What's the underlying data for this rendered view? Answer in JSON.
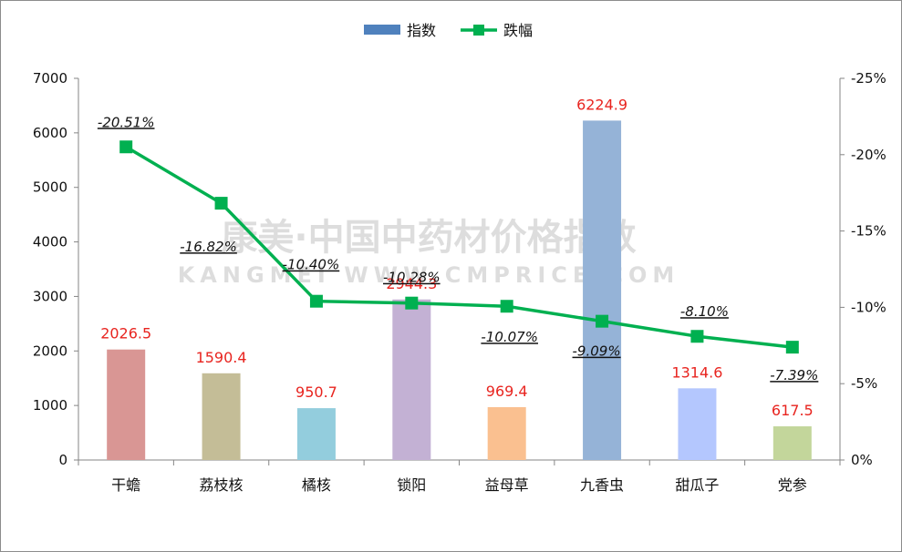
{
  "chart_data": {
    "type": "bar+line",
    "categories": [
      "干蟾",
      "荔枝核",
      "橘核",
      "锁阳",
      "益母草",
      "九香虫",
      "甜瓜子",
      "党参"
    ],
    "series": [
      {
        "name": "指数",
        "type": "bar",
        "axis": "left",
        "values": [
          2026.5,
          1590.4,
          950.7,
          2944.3,
          969.4,
          6224.9,
          1314.6,
          617.5
        ],
        "labels": [
          "2026.5",
          "1590.4",
          "950.7",
          "2944.3",
          "969.4",
          "6224.9",
          "1314.6",
          "617.5"
        ],
        "colors": [
          "#d99694",
          "#c4bd97",
          "#93cddd",
          "#c3b1d4",
          "#fac090",
          "#95b3d7",
          "#b4c7fe",
          "#c3d69b"
        ]
      },
      {
        "name": "跌幅",
        "type": "line",
        "axis": "right",
        "values": [
          -20.51,
          -16.82,
          -10.4,
          -10.28,
          -10.07,
          -9.09,
          -8.1,
          -7.39
        ],
        "labels": [
          "-20.51%",
          "-16.82%",
          "-10.40%",
          "-10.28%",
          "-10.07%",
          "-9.09%",
          "-8.10%",
          "-7.39%"
        ],
        "color": "#00b050"
      }
    ],
    "left_axis": {
      "min": 0,
      "max": 7000,
      "ticks": [
        "0",
        "1000",
        "2000",
        "3000",
        "4000",
        "5000",
        "6000",
        "7000"
      ]
    },
    "right_axis": {
      "min": 0,
      "max": -25,
      "reversed": true,
      "ticks": [
        "0%",
        "-5%",
        "-10%",
        "-15%",
        "-20%",
        "-25%"
      ]
    },
    "legend": {
      "placement": "top-center",
      "entries": [
        "指数",
        "跌幅"
      ]
    },
    "grid": false
  },
  "watermark": {
    "line1": "康美·中国中药材价格指数",
    "line2": "KANGMEI WWW.CMPRICE.COM"
  }
}
